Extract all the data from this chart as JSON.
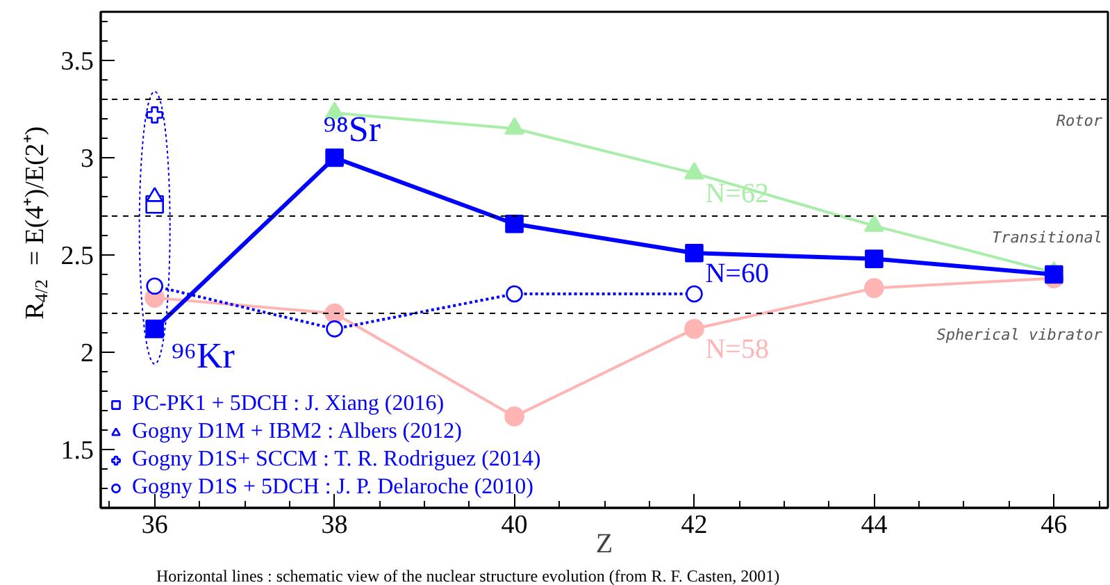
{
  "chart_data": {
    "type": "line",
    "xlabel": "Z",
    "ylabel": "R$_{4/2}$ = E(4⁺)/E(2⁺)",
    "xlim": [
      35.4,
      46.6
    ],
    "ylim": [
      1.2,
      3.75
    ],
    "xticks": [
      36,
      38,
      40,
      42,
      44,
      46
    ],
    "yticks": [
      1.5,
      2,
      2.5,
      3,
      3.5
    ],
    "grid": false,
    "legend": "bottom left",
    "series": [
      {
        "name": "N=62",
        "color": "#a8eea8",
        "type": "line",
        "marker": "triangle",
        "line_style": "solid",
        "x": [
          38,
          40,
          42,
          44,
          46
        ],
        "values": [
          3.23,
          3.15,
          2.92,
          2.65,
          2.41
        ]
      },
      {
        "name": "N=58",
        "color": "#ffb4b4",
        "type": "line",
        "marker": "circle",
        "line_style": "solid",
        "x": [
          36,
          38,
          40,
          42,
          44,
          46
        ],
        "values": [
          2.28,
          2.2,
          1.67,
          2.12,
          2.33,
          2.38
        ]
      },
      {
        "name": "Gogny D1S + 5DCH : J. P. Delaroche (2010)",
        "color": "#0000ff",
        "type": "line",
        "marker": "circle",
        "line_style": "dotted",
        "x": [
          36,
          38,
          40,
          42
        ],
        "values": [
          2.34,
          2.12,
          2.3,
          2.3
        ]
      },
      {
        "name": "N=60",
        "color": "#0000ff",
        "type": "line",
        "marker": "square",
        "line_style": "solid",
        "x": [
          36,
          38,
          40,
          42,
          44,
          46
        ],
        "values": [
          2.12,
          3.0,
          2.66,
          2.51,
          2.48,
          2.4
        ]
      },
      {
        "name": "PC-PK1 + 5DCH : J. Xiang (2016)",
        "color": "#0000ff",
        "type": "scatter",
        "marker": "square",
        "x": [
          36
        ],
        "values": [
          2.76
        ]
      },
      {
        "name": "Gogny D1M + IBM2 : Albers (2012)",
        "color": "#0000ff",
        "type": "scatter",
        "marker": "triangle",
        "x": [
          36
        ],
        "values": [
          2.8
        ]
      },
      {
        "name": "Gogny D1S+ SCCM : T. R. Rodriguez (2014)",
        "color": "#0000ff",
        "type": "scatter",
        "marker": "cross",
        "x": [
          36
        ],
        "values": [
          3.22
        ]
      }
    ],
    "ref_lines": [
      {
        "axis": "y",
        "value": 3.3,
        "label": "Rotor",
        "color": "#000000",
        "line_style": "dashed"
      },
      {
        "axis": "y",
        "value": 2.7,
        "label": "Transitional",
        "color": "#000000",
        "line_style": "dashed"
      },
      {
        "axis": "y",
        "value": 2.2,
        "label": "Spherical vibrator",
        "color": "#000000",
        "line_style": "dashed"
      }
    ],
    "annotations": [
      {
        "text": "⁹⁸Sr",
        "x": 38,
        "y": 3.0
      },
      {
        "text": "⁹⁶Kr",
        "x": 36,
        "y": 2.12
      },
      "Horizontal lines : schematic view of the nuclear structure evolution (from R. F. Casten, 2001)"
    ]
  }
}
